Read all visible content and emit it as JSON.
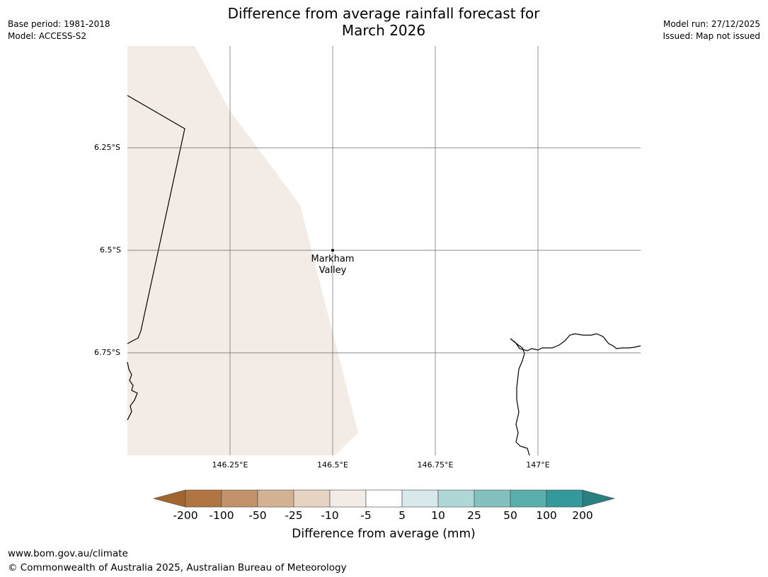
{
  "header": {
    "base_period": "Base period: 1981-2018",
    "model": "Model: ACCESS-S2",
    "title_line1": "Difference from average rainfall forecast for",
    "title_line2": "March 2026",
    "model_run": "Model run: 27/12/2025",
    "issued": "Issued: Map not issued"
  },
  "map": {
    "lat_labels": [
      "6.25°S",
      "6.5°S",
      "6.75°S"
    ],
    "lon_labels": [
      "146.25°E",
      "146.5°E",
      "146.75°E",
      "147°E"
    ],
    "place": {
      "name_line1": "Markham",
      "name_line2": "Valley",
      "lat": -6.5,
      "lon": 146.5
    },
    "shaded_category": "-10 to -5",
    "shade_color": "#f3ece6",
    "land_outline_color": "#000000",
    "grid_color": "#555555"
  },
  "legend": {
    "title": "Difference from average (mm)",
    "ticks": [
      "-200",
      "-100",
      "-50",
      "-25",
      "-10",
      "-5",
      "5",
      "10",
      "25",
      "50",
      "100",
      "200"
    ],
    "colors": [
      "#a0662e",
      "#b07540",
      "#c2926a",
      "#d4b394",
      "#e6d3c2",
      "#f3ece6",
      "#ffffff",
      "#d7e9ea",
      "#aed7d6",
      "#82c1bd",
      "#5aaeab",
      "#34999a",
      "#2a7f80"
    ]
  },
  "footer": {
    "url": "www.bom.gov.au/climate",
    "copyright": "© Commonwealth of Australia 2025, Australian Bureau of Meteorology"
  }
}
